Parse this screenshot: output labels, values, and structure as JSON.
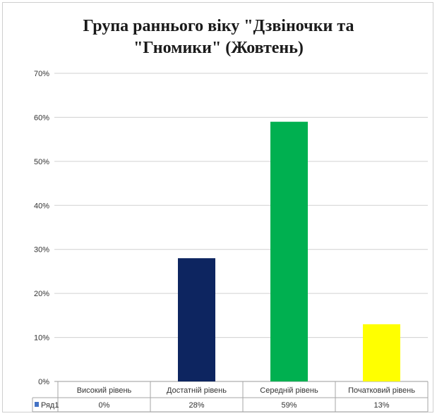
{
  "chart_data": {
    "type": "bar",
    "title_line1": "Група раннього віку \"Дзвіночки та",
    "title_line2": "\"Гномики\" (Жовтень)",
    "categories": [
      "Високий рівень",
      "Достатній рівень",
      "Середній рівень",
      "Початковий рівень"
    ],
    "series": [
      {
        "name": "Ряд1",
        "values": [
          0,
          28,
          59,
          13
        ],
        "value_labels": [
          "0%",
          "28%",
          "59%",
          "13%"
        ]
      }
    ],
    "bar_colors": [
      "#1f4e9c",
      "#0d2560",
      "#00b050",
      "#ffff00"
    ],
    "legend_color": "#4472c4",
    "ylim": [
      0,
      70
    ],
    "yticks": [
      0,
      10,
      20,
      30,
      40,
      50,
      60,
      70
    ],
    "ytick_labels": [
      "0%",
      "10%",
      "20%",
      "30%",
      "40%",
      "50%",
      "60%",
      "70%"
    ],
    "grid": true,
    "data_table": true
  }
}
